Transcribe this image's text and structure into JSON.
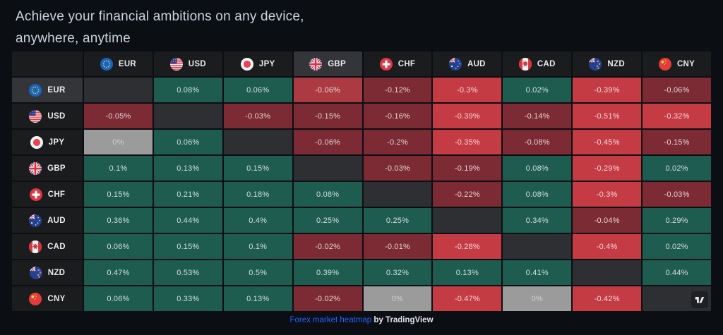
{
  "title": {
    "line1": "Achieve your financial ambitions on any device,",
    "line2": "anywhere, anytime"
  },
  "heatmap": {
    "widget_name": "Forex market heatmap",
    "hover": {
      "row": "EUR",
      "col": "GBP"
    }
  },
  "chart_data": {
    "type": "heatmap",
    "title": "Forex market heatmap",
    "rows": [
      "EUR",
      "USD",
      "JPY",
      "GBP",
      "CHF",
      "AUD",
      "CAD",
      "NZD",
      "CNY"
    ],
    "columns": [
      "EUR",
      "USD",
      "JPY",
      "GBP",
      "CHF",
      "AUD",
      "CAD",
      "NZD",
      "CNY"
    ],
    "values_pct": [
      [
        null,
        0.08,
        0.06,
        -0.06,
        -0.12,
        -0.3,
        0.02,
        -0.39,
        -0.06
      ],
      [
        -0.05,
        null,
        -0.03,
        -0.15,
        -0.16,
        -0.39,
        -0.14,
        -0.51,
        -0.32
      ],
      [
        0,
        0.06,
        null,
        -0.06,
        -0.2,
        -0.35,
        -0.08,
        -0.45,
        -0.15
      ],
      [
        0.1,
        0.13,
        0.15,
        null,
        -0.03,
        -0.19,
        0.08,
        -0.29,
        0.02
      ],
      [
        0.15,
        0.21,
        0.18,
        0.08,
        null,
        -0.22,
        0.08,
        -0.3,
        -0.03
      ],
      [
        0.36,
        0.44,
        0.4,
        0.25,
        0.25,
        null,
        0.34,
        -0.04,
        0.29
      ],
      [
        0.06,
        0.15,
        0.1,
        -0.02,
        -0.01,
        -0.28,
        null,
        -0.4,
        0.02
      ],
      [
        0.47,
        0.53,
        0.5,
        0.39,
        0.32,
        0.13,
        0.41,
        null,
        0.44
      ],
      [
        0.06,
        0.33,
        0.13,
        -0.02,
        0,
        -0.47,
        0,
        -0.42,
        null
      ]
    ],
    "labels": [
      [
        null,
        "0.08%",
        "0.06%",
        "-0.06%",
        "-0.12%",
        "-0.3%",
        "0.02%",
        "-0.39%",
        "-0.06%"
      ],
      [
        "-0.05%",
        null,
        "-0.03%",
        "-0.15%",
        "-0.16%",
        "-0.39%",
        "-0.14%",
        "-0.51%",
        "-0.32%"
      ],
      [
        "0%",
        "0.06%",
        null,
        "-0.06%",
        "-0.2%",
        "-0.35%",
        "-0.08%",
        "-0.45%",
        "-0.15%"
      ],
      [
        "0.1%",
        "0.13%",
        "0.15%",
        null,
        "-0.03%",
        "-0.19%",
        "0.08%",
        "-0.29%",
        "0.02%"
      ],
      [
        "0.15%",
        "0.21%",
        "0.18%",
        "0.08%",
        null,
        "-0.22%",
        "0.08%",
        "-0.3%",
        "-0.03%"
      ],
      [
        "0.36%",
        "0.44%",
        "0.4%",
        "0.25%",
        "0.25%",
        null,
        "0.34%",
        "-0.04%",
        "0.29%"
      ],
      [
        "0.06%",
        "0.15%",
        "0.1%",
        "-0.02%",
        "-0.01%",
        "-0.28%",
        null,
        "-0.4%",
        "0.02%"
      ],
      [
        "0.47%",
        "0.53%",
        "0.5%",
        "0.39%",
        "0.32%",
        "0.13%",
        "0.41%",
        null,
        "0.44%"
      ],
      [
        "0.06%",
        "0.33%",
        "0.13%",
        "-0.02%",
        "0%",
        "-0.47%",
        "0%",
        "-0.42%",
        null
      ]
    ],
    "legend_position": "none",
    "grid": false
  },
  "colors": {
    "page_bg": "#0b0e13",
    "title_color": "#ccd3de",
    "header_bg": "#1b1c1e",
    "header_bg_hover": "#333539",
    "diagonal_bg": "#2e2f32",
    "positive": "#1d5c4f",
    "negative_weak": "#7c2a33",
    "negative_strong": "#c53b44",
    "negative_hover": "#ab3a43",
    "zero_bg": "#9b9b9b",
    "zero_text": "#cfcfcf",
    "link_color": "#2962ff",
    "strong_abs_threshold": 0.25
  },
  "icons": {
    "flags": [
      "flag-eur-icon",
      "flag-usd-icon",
      "flag-jpy-icon",
      "flag-gbp-icon",
      "flag-chf-icon",
      "flag-aud-icon",
      "flag-cad-icon",
      "flag-nzd-icon",
      "flag-cny-icon"
    ],
    "logo": "tradingview-logo-icon"
  },
  "footer": {
    "link_text": "Forex market heatmap",
    "by_text": "by",
    "brand_text": "TradingView"
  }
}
